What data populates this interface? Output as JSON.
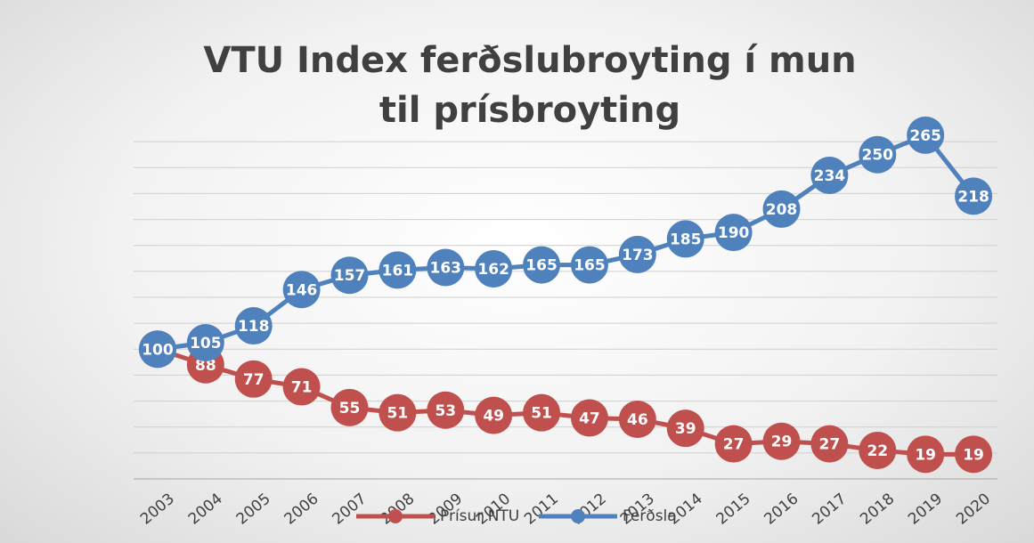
{
  "chart_data": {
    "type": "line",
    "title": "VTU Index ferðslubroyting í mun til prísbroyting",
    "categories": [
      "2003",
      "2004",
      "2005",
      "2006",
      "2007",
      "2008",
      "2009",
      "2010",
      "2011",
      "2012",
      "2013",
      "2014",
      "2015",
      "2016",
      "2017",
      "2018",
      "2019",
      "2020"
    ],
    "series": [
      {
        "name": "Prísur NTU",
        "color": "#c0504d",
        "values": [
          100,
          88,
          77,
          71,
          55,
          51,
          53,
          49,
          51,
          47,
          46,
          39,
          27,
          29,
          27,
          22,
          19,
          19
        ]
      },
      {
        "name": "Ferðsla",
        "color": "#4f81bd",
        "values": [
          100,
          105,
          118,
          146,
          157,
          161,
          163,
          162,
          165,
          165,
          173,
          185,
          190,
          208,
          234,
          250,
          265,
          218
        ]
      }
    ],
    "ylim": [
      0,
      280
    ],
    "yticks": [
      0,
      20,
      40,
      60,
      80,
      100,
      120,
      140,
      160,
      180,
      200,
      220,
      240,
      260
    ],
    "grid": true,
    "legend": "bottom"
  }
}
